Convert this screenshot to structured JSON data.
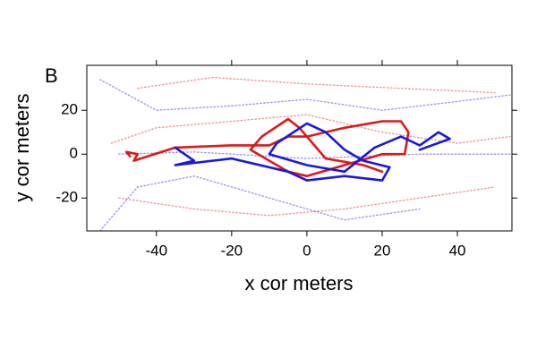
{
  "chart_data": {
    "type": "line",
    "panel_label": "B",
    "x_label": "x cor meters",
    "y_label": "y cor meters",
    "xlim": [
      -58.5,
      54.5
    ],
    "ylim": [
      -35,
      40.5
    ],
    "xticks": [
      -40,
      -20,
      0,
      20,
      40
    ],
    "yticks": [
      -20,
      0,
      20
    ],
    "grid": false,
    "series": [
      {
        "color": "#4a4ae0",
        "style": "dotted",
        "alpha": 0.6,
        "x": [
          -55,
          -40,
          -20,
          0,
          20,
          40,
          54
        ],
        "values": [
          34,
          20,
          22,
          25,
          20,
          24,
          27
        ]
      },
      {
        "color": "#e04a4a",
        "style": "dotted",
        "alpha": 0.6,
        "x": [
          -50,
          -30,
          -10,
          10,
          30,
          50
        ],
        "values": [
          -20,
          -25,
          -28,
          -25,
          -20,
          -15
        ]
      },
      {
        "color": "#4a4ae0",
        "style": "dotted",
        "alpha": 0.6,
        "x": [
          -55,
          -45,
          -30,
          -10,
          10,
          30
        ],
        "values": [
          -35,
          -15,
          -10,
          -20,
          -30,
          -25
        ]
      },
      {
        "color": "#e04a4a",
        "style": "dotted",
        "alpha": 0.6,
        "x": [
          -52,
          -40,
          -20,
          0,
          20,
          40,
          54
        ],
        "values": [
          5,
          12,
          15,
          18,
          10,
          5,
          8
        ]
      },
      {
        "color": "#4a4ae0",
        "style": "dotted",
        "alpha": 0.6,
        "x": [
          -50,
          -30,
          0,
          30,
          54
        ],
        "values": [
          0,
          1,
          -2,
          0,
          0
        ]
      },
      {
        "color": "#e04a4a",
        "style": "dotted",
        "alpha": 0.6,
        "x": [
          -45,
          -25,
          0,
          25,
          50
        ],
        "values": [
          30,
          35,
          32,
          30,
          28
        ]
      },
      {
        "color": "#e01818",
        "style": "solid",
        "alpha": 1,
        "x": [
          -47,
          -48,
          -45,
          -46,
          -35,
          -20,
          -10,
          -5,
          0,
          10,
          20,
          25,
          27,
          26,
          20,
          10,
          0,
          -5,
          -10,
          -15,
          -12,
          -5,
          -2,
          5,
          15,
          20
        ],
        "values": [
          -1,
          1,
          0,
          -3,
          3,
          4,
          4,
          8,
          8,
          12,
          15,
          15,
          10,
          0,
          0,
          -5,
          -10,
          -8,
          -3,
          2,
          8,
          16,
          12,
          -2,
          -5,
          -8
        ]
      },
      {
        "color": "#1818e0",
        "style": "solid",
        "alpha": 1,
        "x": [
          -35,
          -30,
          -35,
          -20,
          -5,
          0,
          10,
          20,
          22,
          15,
          10,
          5,
          0,
          -8,
          -10,
          0,
          10,
          18,
          25,
          30,
          35,
          38,
          30
        ],
        "values": [
          3,
          -3,
          -5,
          -2,
          -8,
          -12,
          -10,
          -12,
          -6,
          -3,
          2,
          10,
          14,
          5,
          0,
          -5,
          -8,
          3,
          8,
          4,
          10,
          7,
          2
        ]
      }
    ]
  }
}
